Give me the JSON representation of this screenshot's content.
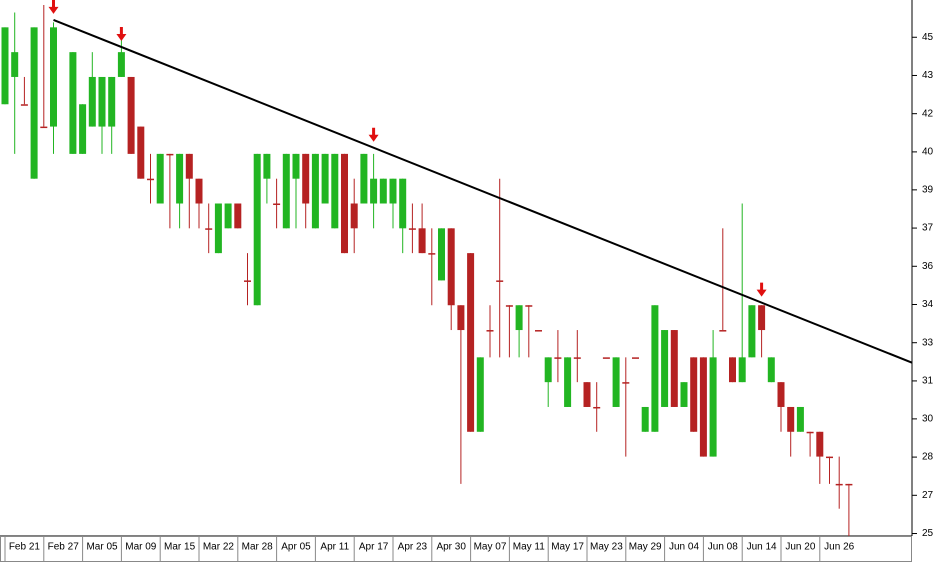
{
  "chart_data": {
    "type": "candlestick",
    "categories": [
      null,
      null,
      "Feb 21",
      null,
      null,
      null,
      "Feb 27",
      null,
      null,
      null,
      "Mar 05",
      null,
      null,
      null,
      "Mar 09",
      null,
      null,
      null,
      "Mar 15",
      null,
      null,
      null,
      "Mar 22",
      null,
      null,
      null,
      "Mar 28",
      null,
      null,
      null,
      "Apr 05",
      null,
      null,
      null,
      "Apr 11",
      null,
      null,
      null,
      "Apr 17",
      null,
      null,
      null,
      "Apr 23",
      null,
      null,
      null,
      "Apr 30",
      null,
      null,
      null,
      "May 07",
      null,
      null,
      null,
      "May 11",
      null,
      null,
      null,
      "May 17",
      null,
      null,
      null,
      "May 23",
      null,
      null,
      null,
      "May 29",
      null,
      null,
      null,
      "Jun 04",
      null,
      null,
      null,
      "Jun 08",
      null,
      null,
      null,
      "Jun 14",
      null,
      null,
      null,
      "Jun 20",
      null,
      null,
      null,
      "Jun 26",
      null
    ],
    "open": [
      42.3,
      43.4,
      42.3,
      39.3,
      41.4,
      41.4,
      null,
      40.3,
      40.3,
      41.4,
      41.4,
      41.4,
      43.4,
      43.4,
      41.4,
      39.3,
      38.3,
      40.3,
      38.3,
      40.3,
      39.3,
      37.3,
      36.3,
      37.3,
      38.3,
      35.2,
      34.2,
      39.3,
      38.3,
      37.3,
      39.3,
      40.3,
      37.3,
      38.3,
      37.3,
      40.3,
      38.3,
      38.3,
      38.3,
      38.3,
      38.3,
      37.3,
      37.3,
      37.3,
      36.3,
      35.2,
      37.3,
      34.2,
      36.3,
      29.1,
      33.2,
      35.2,
      34.2,
      33.2,
      34.2,
      33.2,
      31.1,
      32.1,
      30.1,
      32.1,
      31.1,
      30.1,
      32.1,
      30.1,
      31.1,
      32.1,
      29.1,
      29.1,
      30.1,
      33.2,
      30.1,
      32.1,
      32.1,
      28.1,
      33.2,
      32.1,
      31.1,
      32.1,
      34.2,
      31.1,
      31.1,
      30.1,
      29.1,
      29.1,
      29.1,
      28.1,
      27.0,
      27.0
    ],
    "high": [
      45.4,
      46.0,
      43.4,
      45.4,
      46.3,
      45.6,
      null,
      44.4,
      42.3,
      44.4,
      43.4,
      43.4,
      45.0,
      43.4,
      41.4,
      40.3,
      40.3,
      40.3,
      40.3,
      40.3,
      39.3,
      38.3,
      38.3,
      38.3,
      38.3,
      36.3,
      40.3,
      40.3,
      39.3,
      40.3,
      40.3,
      40.3,
      40.3,
      40.3,
      40.3,
      40.3,
      39.3,
      40.3,
      40.3,
      39.3,
      39.3,
      39.3,
      38.3,
      38.3,
      37.3,
      37.3,
      37.3,
      34.2,
      36.3,
      32.1,
      34.2,
      39.3,
      34.2,
      34.2,
      34.2,
      33.2,
      32.1,
      33.2,
      32.1,
      33.2,
      31.1,
      31.1,
      32.1,
      32.1,
      32.1,
      32.1,
      30.1,
      34.2,
      33.2,
      33.2,
      31.1,
      32.1,
      32.1,
      33.2,
      37.3,
      32.1,
      38.3,
      34.2,
      34.2,
      32.1,
      31.1,
      30.1,
      30.1,
      29.1,
      29.1,
      28.1,
      28.1,
      27.0
    ],
    "low": [
      42.3,
      40.3,
      42.3,
      39.3,
      41.4,
      40.3,
      null,
      40.3,
      40.3,
      41.4,
      40.3,
      40.3,
      43.4,
      40.3,
      39.3,
      38.3,
      38.3,
      37.3,
      37.3,
      37.3,
      37.3,
      36.3,
      36.3,
      37.3,
      37.3,
      34.2,
      34.2,
      38.3,
      37.3,
      37.3,
      37.3,
      37.3,
      37.3,
      38.3,
      37.3,
      36.3,
      36.3,
      38.3,
      37.3,
      38.3,
      37.3,
      36.3,
      36.3,
      36.3,
      34.2,
      35.2,
      33.2,
      27.0,
      29.1,
      29.1,
      32.1,
      32.1,
      32.1,
      32.1,
      32.1,
      33.2,
      30.1,
      31.1,
      30.1,
      31.1,
      30.1,
      29.1,
      32.1,
      30.1,
      28.1,
      32.1,
      29.1,
      29.1,
      30.1,
      30.1,
      30.1,
      29.1,
      28.1,
      28.1,
      33.2,
      31.1,
      31.1,
      32.1,
      32.1,
      31.1,
      29.1,
      28.1,
      29.1,
      28.1,
      27.0,
      27.0,
      26.0,
      24.9
    ],
    "close": [
      45.4,
      44.4,
      42.3,
      45.4,
      41.4,
      45.4,
      null,
      44.4,
      42.3,
      43.4,
      43.4,
      43.4,
      44.4,
      40.3,
      39.3,
      39.3,
      40.3,
      40.3,
      40.3,
      39.3,
      38.3,
      37.3,
      38.3,
      38.3,
      37.3,
      35.2,
      40.3,
      40.3,
      38.3,
      40.3,
      40.3,
      38.3,
      40.3,
      40.3,
      40.3,
      36.3,
      37.3,
      40.3,
      39.3,
      39.3,
      39.3,
      39.3,
      37.3,
      36.3,
      36.3,
      37.3,
      34.2,
      33.2,
      29.1,
      32.1,
      33.2,
      35.2,
      34.2,
      34.2,
      34.2,
      33.2,
      32.1,
      32.1,
      32.1,
      32.1,
      30.1,
      30.1,
      32.1,
      32.1,
      31.1,
      32.1,
      30.1,
      34.2,
      33.2,
      30.1,
      31.1,
      29.1,
      28.1,
      32.1,
      33.2,
      31.1,
      32.1,
      34.2,
      33.2,
      32.1,
      30.1,
      29.1,
      30.1,
      29.1,
      28.1,
      28.1,
      27.0,
      27.0
    ],
    "up_color": "#22b522",
    "down_color": "#b52222",
    "trendline": {
      "x": [
        5,
        87
      ],
      "values": [
        45.7,
        32.9
      ]
    },
    "markers": [
      5,
      12,
      38,
      78
    ],
    "ylim": [
      24.9,
      46.3
    ],
    "yticks": [
      {
        "value": 45.0,
        "label": "45"
      },
      {
        "value": 43.46,
        "label": "43"
      },
      {
        "value": 41.92,
        "label": "42"
      },
      {
        "value": 40.38,
        "label": "40"
      },
      {
        "value": 38.85,
        "label": "39"
      },
      {
        "value": 37.31,
        "label": "37"
      },
      {
        "value": 35.77,
        "label": "36"
      },
      {
        "value": 34.23,
        "label": "34"
      },
      {
        "value": 32.69,
        "label": "33"
      },
      {
        "value": 31.15,
        "label": "31"
      },
      {
        "value": 29.62,
        "label": "30"
      },
      {
        "value": 28.08,
        "label": "28"
      },
      {
        "value": 26.54,
        "label": "27"
      },
      {
        "value": 25.0,
        "label": "25"
      }
    ]
  }
}
